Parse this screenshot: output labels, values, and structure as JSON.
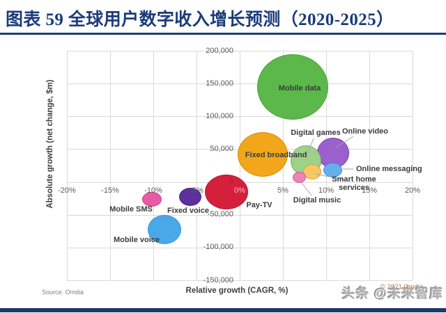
{
  "page": {
    "title": "图表 59  全球用户数字收入增长预测（2020-2025）",
    "watermark": "头条 @未来智库",
    "accent_color": "#1b3b7a",
    "bottom_bar_color": "#1e3766"
  },
  "chart_data": {
    "type": "scatter",
    "subtype": "bubble",
    "title": "",
    "xlabel": "Relative growth (CAGR, %)",
    "ylabel": "Absolute growth (net change, $m)",
    "source": "Source: Omdia",
    "copyright": "© 2021 Omdia",
    "xlim": [
      -20,
      20
    ],
    "ylim": [
      -150000,
      200000
    ],
    "grid": true,
    "legend_position": "none",
    "x_ticks": [
      {
        "value": -20,
        "label": "-20%"
      },
      {
        "value": -15,
        "label": "-15%"
      },
      {
        "value": -10,
        "label": "-10%"
      },
      {
        "value": -5,
        "label": "-5%"
      },
      {
        "value": 0,
        "label": "0%"
      },
      {
        "value": 5,
        "label": "5%"
      },
      {
        "value": 10,
        "label": "10%"
      },
      {
        "value": 15,
        "label": "15%"
      },
      {
        "value": 20,
        "label": "20%"
      }
    ],
    "y_ticks": [
      {
        "value": 200000,
        "label": "200,000"
      },
      {
        "value": 150000,
        "label": "150,000"
      },
      {
        "value": 100000,
        "label": "100,000"
      },
      {
        "value": 50000,
        "label": "50,000"
      },
      {
        "value": 0,
        "label": "0"
      },
      {
        "value": -50000,
        "label": "-50,000"
      },
      {
        "value": -100000,
        "label": "-100,000"
      },
      {
        "value": -150000,
        "label": "-150,000"
      }
    ],
    "points": [
      {
        "id": "mobile-data",
        "label": "Mobile data",
        "cagr_pct": 6.1,
        "net_change_usd_m": 145000,
        "fill": "#5cb84a",
        "stroke": "#47a238"
      },
      {
        "id": "fixed-broadband",
        "label": "Fixed broadband",
        "cagr_pct": 2.7,
        "net_change_usd_m": 42000,
        "fill": "#f2a71b",
        "stroke": "#d68f00"
      },
      {
        "id": "online-video",
        "label": "Online video",
        "cagr_pct": 10.8,
        "net_change_usd_m": 44000,
        "fill": "#9b5fce",
        "stroke": "#7b3fb0"
      },
      {
        "id": "digital-games",
        "label": "Digital games",
        "cagr_pct": 7.7,
        "net_change_usd_m": 32000,
        "fill": "#9ed189",
        "stroke": "#6fae54"
      },
      {
        "id": "online-messaging",
        "label": "Online messaging",
        "cagr_pct": 10.8,
        "net_change_usd_m": 18000,
        "fill": "#64b0ec",
        "stroke": "#3d8fd6"
      },
      {
        "id": "smart-home-services",
        "label": "Smart home services",
        "cagr_pct": 8.4,
        "net_change_usd_m": 15000,
        "fill": "#f6c765",
        "stroke": "#d9a43c"
      },
      {
        "id": "digital-music",
        "label": "Digital music",
        "cagr_pct": 6.9,
        "net_change_usd_m": 7000,
        "fill": "#f083b8",
        "stroke": "#d6549c"
      },
      {
        "id": "pay-tv",
        "label": "Pay-TV",
        "cagr_pct": -1.5,
        "net_change_usd_m": -15000,
        "fill": "#d6203b",
        "stroke": "#b5172e"
      },
      {
        "id": "fixed-voice",
        "label": "Fixed voice",
        "cagr_pct": -5.7,
        "net_change_usd_m": -23000,
        "fill": "#5e2f9e",
        "stroke": "#4a2382"
      },
      {
        "id": "mobile-sms",
        "label": "Mobile SMS",
        "cagr_pct": -10.2,
        "net_change_usd_m": -26000,
        "fill": "#e85aa5",
        "stroke": "#cc3f8d"
      },
      {
        "id": "mobile-voice",
        "label": "Mobile voice",
        "cagr_pct": -8.7,
        "net_change_usd_m": -73000,
        "fill": "#49a8e8",
        "stroke": "#3997dc"
      }
    ]
  }
}
